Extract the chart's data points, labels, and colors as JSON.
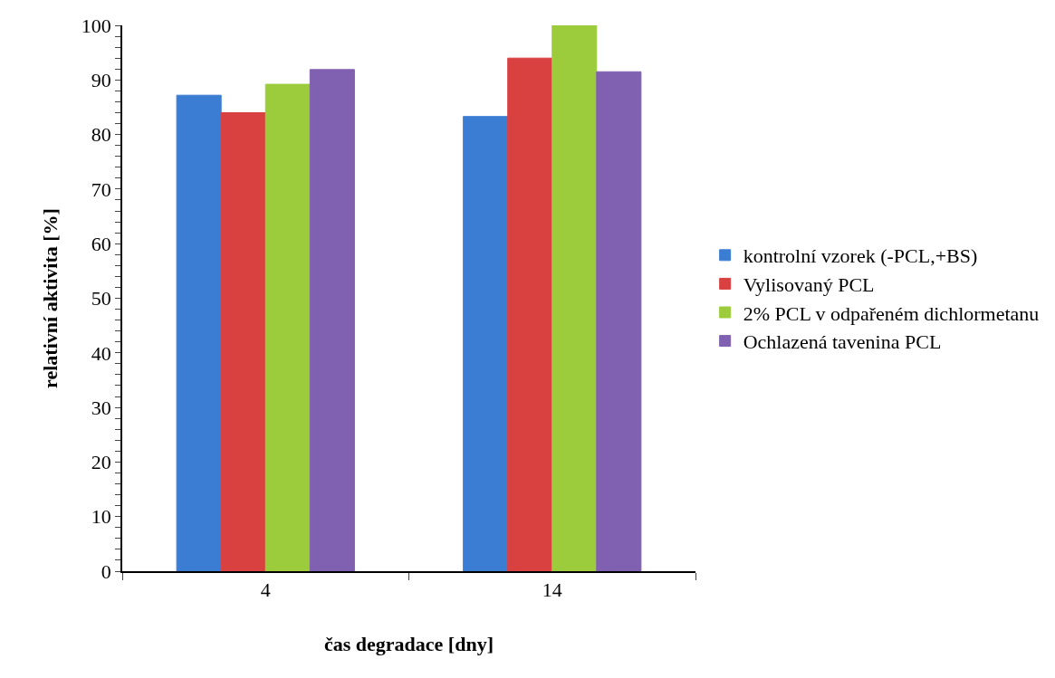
{
  "chart_data": {
    "type": "bar",
    "xlabel": "čas degradace [dny]",
    "ylabel": "relativní aktivita [%]",
    "categories": [
      "4",
      "14"
    ],
    "series": [
      {
        "name": "kontrolní vzorek (-PCL,+BS)",
        "color": "#3c7dd4",
        "values": [
          87.2,
          83.3
        ]
      },
      {
        "name": "Vylisovaný PCL",
        "color": "#d94040",
        "values": [
          84,
          94
        ]
      },
      {
        "name": "2% PCL v odpařeném dichlormetanu",
        "color": "#9ccc3c",
        "values": [
          89.2,
          100
        ]
      },
      {
        "name": "Ochlazená tavenina PCL",
        "color": "#8060b0",
        "values": [
          91.9,
          91.5
        ]
      }
    ],
    "ylim": [
      0,
      100
    ],
    "yticks": [
      0,
      {
        "value": 2,
        "label": null
      },
      {
        "value": 4,
        "label": null
      },
      {
        "value": 6,
        "label": null
      },
      {
        "value": 8,
        "label": null
      },
      10,
      {
        "value": 12,
        "label": null
      },
      {
        "value": 14,
        "label": null
      },
      {
        "value": 16,
        "label": null
      },
      {
        "value": 18,
        "label": null
      },
      20,
      {
        "value": 22,
        "label": null
      },
      {
        "value": 24,
        "label": null
      },
      {
        "value": 26,
        "label": null
      },
      {
        "value": 28,
        "label": null
      },
      30,
      {
        "value": 32,
        "label": null
      },
      {
        "value": 34,
        "label": null
      },
      {
        "value": 36,
        "label": null
      },
      {
        "value": 38,
        "label": null
      },
      40,
      {
        "value": 42,
        "label": null
      },
      {
        "value": 44,
        "label": null
      },
      {
        "value": 46,
        "label": null
      },
      {
        "value": 48,
        "label": null
      },
      50,
      {
        "value": 52,
        "label": null
      },
      {
        "value": 54,
        "label": null
      },
      {
        "value": 56,
        "label": null
      },
      {
        "value": 58,
        "label": null
      },
      60,
      {
        "value": 62,
        "label": null
      },
      {
        "value": 64,
        "label": null
      },
      {
        "value": 66,
        "label": null
      },
      {
        "value": 68,
        "label": null
      },
      70,
      {
        "value": 72,
        "label": null
      },
      {
        "value": 74,
        "label": null
      },
      {
        "value": 76,
        "label": null
      },
      {
        "value": 78,
        "label": null
      },
      80,
      {
        "value": 82,
        "label": null
      },
      {
        "value": 84,
        "label": null
      },
      {
        "value": 86,
        "label": null
      },
      {
        "value": 88,
        "label": null
      },
      90,
      {
        "value": 92,
        "label": null
      },
      {
        "value": 94,
        "label": null
      },
      {
        "value": 96,
        "label": null
      },
      {
        "value": 98,
        "label": null
      },
      100
    ],
    "grid": false,
    "legend": "right"
  }
}
